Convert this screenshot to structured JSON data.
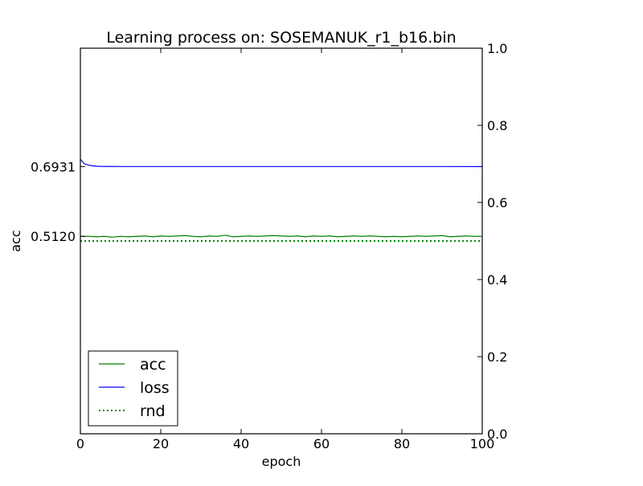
{
  "chart_data": {
    "type": "line",
    "title": "Learning process on: SOSEMANUK_r1_b16.bin",
    "xlabel": "epoch",
    "ylabel": "acc",
    "xlim": [
      0,
      100
    ],
    "ylim": [
      0,
      1
    ],
    "grid": false,
    "legend_position": "lower-left",
    "x_ticks": [
      "0",
      "20",
      "40",
      "60",
      "80",
      "100"
    ],
    "y_right_ticks": [
      "0.0",
      "0.2",
      "0.4",
      "0.6",
      "0.8",
      "1.0"
    ],
    "y_left_ticks": [
      {
        "label": "0.6931",
        "value": 0.6931
      },
      {
        "label": "0.5120",
        "value": 0.512
      }
    ],
    "series": [
      {
        "name": "acc",
        "color": "#008000",
        "style": "solid",
        "x": [
          0,
          2,
          4,
          6,
          8,
          10,
          12,
          14,
          16,
          18,
          20,
          22,
          24,
          26,
          28,
          30,
          32,
          34,
          36,
          38,
          40,
          42,
          44,
          46,
          48,
          50,
          52,
          54,
          56,
          58,
          60,
          62,
          64,
          66,
          68,
          70,
          72,
          74,
          76,
          78,
          80,
          82,
          84,
          86,
          88,
          90,
          92,
          94,
          96,
          98,
          100
        ],
        "values": [
          0.512,
          0.512,
          0.511,
          0.512,
          0.51,
          0.512,
          0.511,
          0.512,
          0.513,
          0.511,
          0.513,
          0.512,
          0.513,
          0.514,
          0.512,
          0.511,
          0.513,
          0.512,
          0.515,
          0.511,
          0.512,
          0.513,
          0.512,
          0.513,
          0.514,
          0.513,
          0.512,
          0.513,
          0.511,
          0.513,
          0.512,
          0.513,
          0.511,
          0.512,
          0.513,
          0.512,
          0.513,
          0.512,
          0.511,
          0.512,
          0.511,
          0.512,
          0.513,
          0.512,
          0.513,
          0.514,
          0.511,
          0.512,
          0.513,
          0.512,
          0.512
        ]
      },
      {
        "name": "loss",
        "color": "#0000ff",
        "style": "solid",
        "x": [
          0,
          0.5,
          1,
          2,
          3,
          4,
          5,
          6,
          8,
          10,
          20,
          30,
          40,
          50,
          60,
          70,
          80,
          90,
          100
        ],
        "values": [
          0.712,
          0.706,
          0.7,
          0.697,
          0.695,
          0.694,
          0.6935,
          0.6933,
          0.6932,
          0.6931,
          0.6931,
          0.6931,
          0.6931,
          0.6931,
          0.6931,
          0.6931,
          0.6931,
          0.6931,
          0.693
        ]
      },
      {
        "name": "rnd",
        "color": "#008000",
        "style": "dotted",
        "x": [
          0,
          100
        ],
        "values": [
          0.5,
          0.5
        ]
      }
    ]
  }
}
